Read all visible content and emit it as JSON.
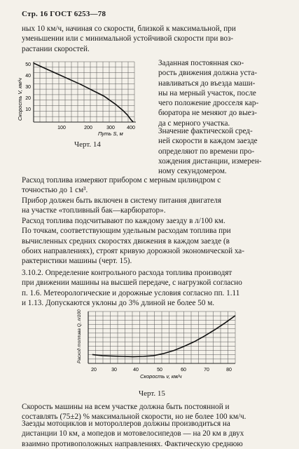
{
  "header": "Стр. 16 ГОСТ 6253—78",
  "intro": [
    "ных 10 км/ч, начиная со скорости, близкой к максимальной, при",
    "уменьшении или с минимальной устойчивой скорости при воз-",
    "растании скоростей."
  ],
  "fig14": {
    "caption": "Черт. 14",
    "ylabel": "Скорость V, км/ч",
    "xlabel": "Путь  S, м",
    "yticks": [
      "50",
      "40",
      "30",
      "20",
      "10"
    ],
    "xticks": [
      "100",
      "200",
      "300",
      "400"
    ]
  },
  "chart_data": [
    {
      "type": "line",
      "xlabel": "Путь S, м",
      "ylabel": "Скорость V, км/ч",
      "xlim": [
        0,
        430
      ],
      "ylim": [
        0,
        50
      ],
      "grid": true,
      "series": [
        {
          "x": [
            0,
            50,
            100,
            150,
            200,
            250,
            300,
            350,
            380,
            400,
            415,
            425
          ],
          "values": [
            50,
            45.5,
            41,
            36.5,
            32,
            27,
            22,
            15,
            10,
            6,
            2,
            0
          ]
        }
      ]
    },
    {
      "type": "line",
      "xlabel": "Скорость v, км/ч",
      "ylabel": "Расход топлива Q, л/100 км",
      "xlim": [
        18,
        90
      ],
      "grid": true,
      "series": [
        {
          "x": [
            20,
            25,
            30,
            35,
            40,
            45,
            50,
            55,
            60,
            65,
            70,
            75,
            80,
            85,
            90
          ],
          "values": [
            0.17,
            0.15,
            0.14,
            0.135,
            0.13,
            0.135,
            0.15,
            0.19,
            0.25,
            0.33,
            0.42,
            0.53,
            0.65,
            0.78,
            0.92
          ]
        }
      ]
    }
  ],
  "side_text": [
    "Заданная постоянная ско-",
    "рость движения должна уста-",
    "навливаться до въезда маши-",
    "ны на мерный участок, после",
    "чего положение дросселя кар-",
    "бюратора не меняют до выез-",
    "да с мерного участка."
  ],
  "side_text2": [
    "Значение фактической сред-",
    "ней скорости в каждом заезде",
    "определяют по времени про-",
    "хождения дистанции, измерен-",
    "ному секундомером."
  ],
  "para_fuel": [
    "Расход топлива измеряют прибором с мерным цилиндром с",
    "точностью до 1 см³."
  ],
  "para_device": [
    "Прибор должен быть включен в систему питания двигателя",
    "на участке «топливный бак—карбюратор»."
  ],
  "para_calc": [
    "Расход топлива подсчитывают по каждому заезду в л/100 км.",
    "По точкам, соответствующим удельным расходам топлива при",
    "вычисленных средних скоростях движения в каждом заезде (в",
    "обоих направлениях), строят кривую дорожной экономической ха-",
    "рактеристики машины (черт. 15)."
  ],
  "para_3102": [
    "3.10.2. Определение контрольного расхода топлива производят",
    "при движении машины на высшей передаче, с нагрузкой согласно",
    "п. 1.6. Метеорологические и дорожные условия согласно пп. 1.11",
    "и 1.13. Допускаются уклоны до 3% длиной не более 50 м."
  ],
  "fig15": {
    "caption": "Черт. 15",
    "ylabel": "Расход топлива Q, л/100 км",
    "xlabel": "Скорость  v, км/ч",
    "xticks": [
      "20",
      "30",
      "40",
      "50",
      "60",
      "70",
      "80"
    ]
  },
  "para_speed": [
    "Скорость машины на всем участке должна быть постоянной и",
    "составлять (75±2) % максимальной скорости, но не более 100 км/ч."
  ],
  "para_moto": [
    "Заезды мотоциклов и мотороллеров должны производиться на",
    "дистанции 10 км, а мопедов и мотовелосипедов — на 20 км в двух",
    "взаимно противоположных направлениях. Фактическую среднюю"
  ]
}
